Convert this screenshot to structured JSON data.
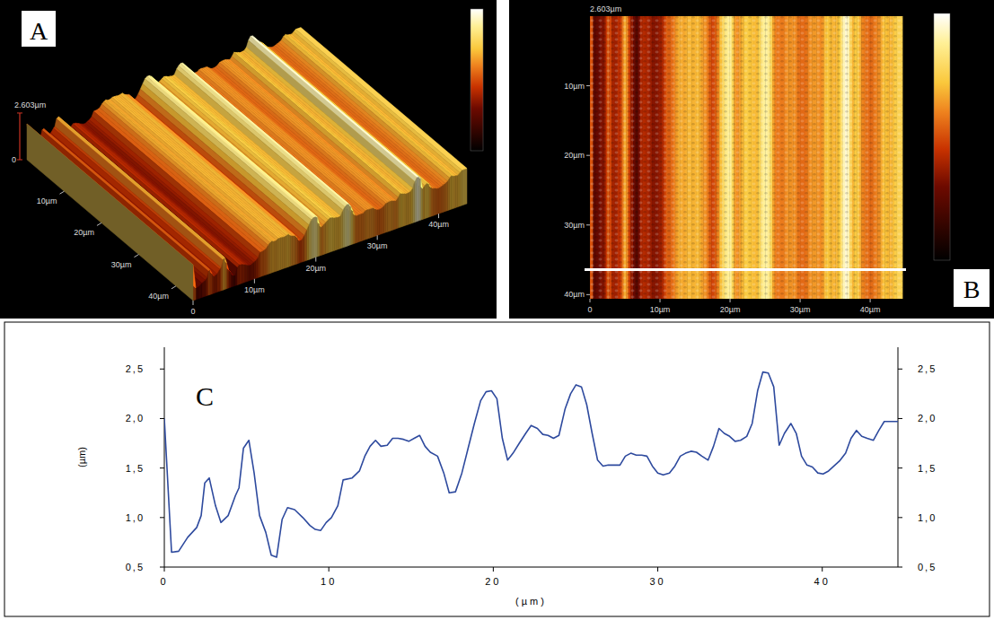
{
  "chart_data": [
    {
      "type": "surface",
      "label": "A",
      "xlim": [
        0,
        44.6
      ],
      "ylim": [
        0,
        44.6
      ],
      "zlim": [
        0,
        2.603
      ],
      "xticks": [
        0,
        {
          "value": 10,
          "label": "10µm"
        },
        {
          "value": 20,
          "label": "20µm"
        },
        {
          "value": 30,
          "label": "30µm"
        },
        {
          "value": 40,
          "label": "40µm"
        }
      ],
      "yticks": [
        {
          "value": 10,
          "label": "10µm"
        },
        {
          "value": 20,
          "label": "20µm"
        },
        {
          "value": 30,
          "label": "30µm"
        },
        {
          "value": 40,
          "label": "40µm"
        }
      ],
      "zticks": [
        0,
        {
          "value": 2.603,
          "label": "2.603µm"
        }
      ]
    },
    {
      "type": "heatmap",
      "label": "B",
      "xlim": [
        0,
        44.6
      ],
      "ylim": [
        0,
        40.6
      ],
      "zlim": [
        0,
        2.603
      ],
      "xticks": [
        0,
        {
          "value": 10,
          "label": "10µm"
        },
        {
          "value": 20,
          "label": "20µm"
        },
        {
          "value": 30,
          "label": "30µm"
        },
        {
          "value": 40,
          "label": "40µm"
        }
      ],
      "yticks": [
        {
          "value": 10,
          "label": "10µm"
        },
        {
          "value": 20,
          "label": "20µm"
        },
        {
          "value": 30,
          "label": "30µm"
        },
        {
          "value": 40,
          "label": "40µm"
        }
      ],
      "zticks": [
        {
          "value": 2.603,
          "label": "2.603µm"
        }
      ],
      "profile_y": 36.4
    },
    {
      "type": "line",
      "label": "C",
      "color": "#2e4a9e",
      "x_label": "(µm)",
      "y_label": "(µm)",
      "x": [
        0,
        0.44,
        0.87,
        1.42,
        1.97,
        2.24,
        2.46,
        2.73,
        3.11,
        3.44,
        3.88,
        4.32,
        4.54,
        4.81,
        5.14,
        5.46,
        5.79,
        6.17,
        6.5,
        6.83,
        7.16,
        7.49,
        7.92,
        8.42,
        8.85,
        9.18,
        9.51,
        9.84,
        10.16,
        10.55,
        10.87,
        11.42,
        11.86,
        12.19,
        12.51,
        12.84,
        13.17,
        13.55,
        13.88,
        14.21,
        14.54,
        14.86,
        15.19,
        15.52,
        15.85,
        16.17,
        16.61,
        16.99,
        17.32,
        17.7,
        18.09,
        18.47,
        18.85,
        19.23,
        19.56,
        19.89,
        20.22,
        20.55,
        20.87,
        21.2,
        21.58,
        21.97,
        22.3,
        22.68,
        23.01,
        23.33,
        23.66,
        23.99,
        24.37,
        24.7,
        25.03,
        25.36,
        25.68,
        26.01,
        26.34,
        26.67,
        26.99,
        27.38,
        27.7,
        28.03,
        28.36,
        28.69,
        29.02,
        29.34,
        29.67,
        30,
        30.33,
        30.71,
        31.04,
        31.37,
        31.69,
        32.02,
        32.35,
        32.68,
        33.06,
        33.39,
        33.72,
        34.04,
        34.37,
        34.7,
        35.03,
        35.41,
        35.74,
        36.07,
        36.39,
        36.72,
        37.05,
        37.38,
        37.7,
        38.09,
        38.42,
        38.74,
        39.07,
        39.4,
        39.73,
        40.05,
        40.38,
        40.71,
        41.04,
        41.42,
        41.75,
        42.08,
        42.4,
        42.73,
        43.11,
        43.44,
        43.77,
        44.6
      ],
      "values": [
        2.0,
        0.65,
        0.66,
        0.8,
        0.9,
        1.02,
        1.35,
        1.4,
        1.12,
        0.95,
        1.02,
        1.22,
        1.3,
        1.7,
        1.78,
        1.45,
        1.02,
        0.85,
        0.62,
        0.6,
        0.98,
        1.1,
        1.08,
        1.0,
        0.92,
        0.88,
        0.87,
        0.95,
        1.0,
        1.12,
        1.38,
        1.4,
        1.47,
        1.62,
        1.72,
        1.78,
        1.72,
        1.73,
        1.8,
        1.8,
        1.79,
        1.77,
        1.8,
        1.83,
        1.72,
        1.66,
        1.62,
        1.45,
        1.25,
        1.26,
        1.45,
        1.7,
        1.95,
        2.18,
        2.27,
        2.28,
        2.2,
        1.8,
        1.58,
        1.65,
        1.75,
        1.85,
        1.93,
        1.9,
        1.84,
        1.83,
        1.8,
        1.83,
        2.1,
        2.25,
        2.34,
        2.32,
        2.14,
        1.85,
        1.58,
        1.52,
        1.53,
        1.53,
        1.53,
        1.62,
        1.65,
        1.63,
        1.63,
        1.62,
        1.52,
        1.45,
        1.43,
        1.45,
        1.52,
        1.62,
        1.65,
        1.67,
        1.66,
        1.62,
        1.58,
        1.72,
        1.9,
        1.85,
        1.82,
        1.77,
        1.78,
        1.82,
        1.95,
        2.28,
        2.47,
        2.46,
        2.32,
        1.73,
        1.85,
        1.95,
        1.85,
        1.62,
        1.53,
        1.51,
        1.45,
        1.44,
        1.47,
        1.52,
        1.57,
        1.65,
        1.8,
        1.88,
        1.82,
        1.8,
        1.78,
        1.88,
        1.97,
        1.97
      ],
      "xlim": [
        0,
        44.6
      ],
      "ylim": [
        0.5,
        2.72
      ],
      "xticks": [
        0,
        10,
        20,
        30,
        40
      ],
      "yticks": [
        {
          "value": 0.5,
          "label": "0,5"
        },
        {
          "value": 1,
          "label": "1,0"
        },
        {
          "value": 1.5,
          "label": "1,5"
        },
        {
          "value": 2,
          "label": "2,0"
        },
        {
          "value": 2.5,
          "label": "2,5"
        }
      ],
      "y2lim": [
        0.5,
        2.72
      ],
      "y2ticks": [
        {
          "value": 0.5,
          "label": "0,5"
        },
        {
          "value": 1,
          "label": "1,0"
        },
        {
          "value": 1.5,
          "label": "1,5"
        },
        {
          "value": 2,
          "label": "2,0"
        },
        {
          "value": 2.5,
          "label": "2,5"
        }
      ]
    }
  ]
}
